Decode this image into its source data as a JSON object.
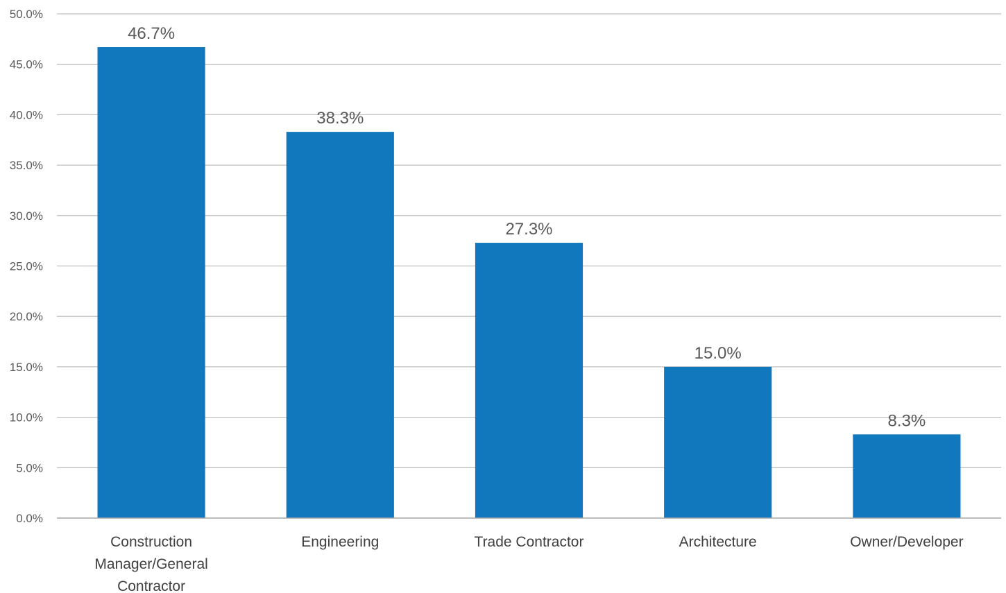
{
  "chart_data": {
    "type": "bar",
    "title": "",
    "xlabel": "",
    "ylabel": "",
    "categories": [
      [
        "Construction",
        "Manager/General",
        "Contractor"
      ],
      [
        "Engineering"
      ],
      [
        "Trade Contractor"
      ],
      [
        "Architecture"
      ],
      [
        "Owner/Developer"
      ]
    ],
    "values": [
      46.7,
      38.3,
      27.3,
      15.0,
      8.3
    ],
    "value_labels": [
      "46.7%",
      "38.3%",
      "27.3%",
      "15.0%",
      "8.3%"
    ],
    "ylim": [
      0,
      50
    ],
    "y_ticks": [
      0,
      5,
      10,
      15,
      20,
      25,
      30,
      35,
      40,
      45,
      50
    ],
    "y_tick_labels": [
      "0.0%",
      "5.0%",
      "10.0%",
      "15.0%",
      "20.0%",
      "25.0%",
      "30.0%",
      "35.0%",
      "40.0%",
      "45.0%",
      "50.0%"
    ],
    "grid": true,
    "legend": "none",
    "bar_color": "#1278be"
  }
}
